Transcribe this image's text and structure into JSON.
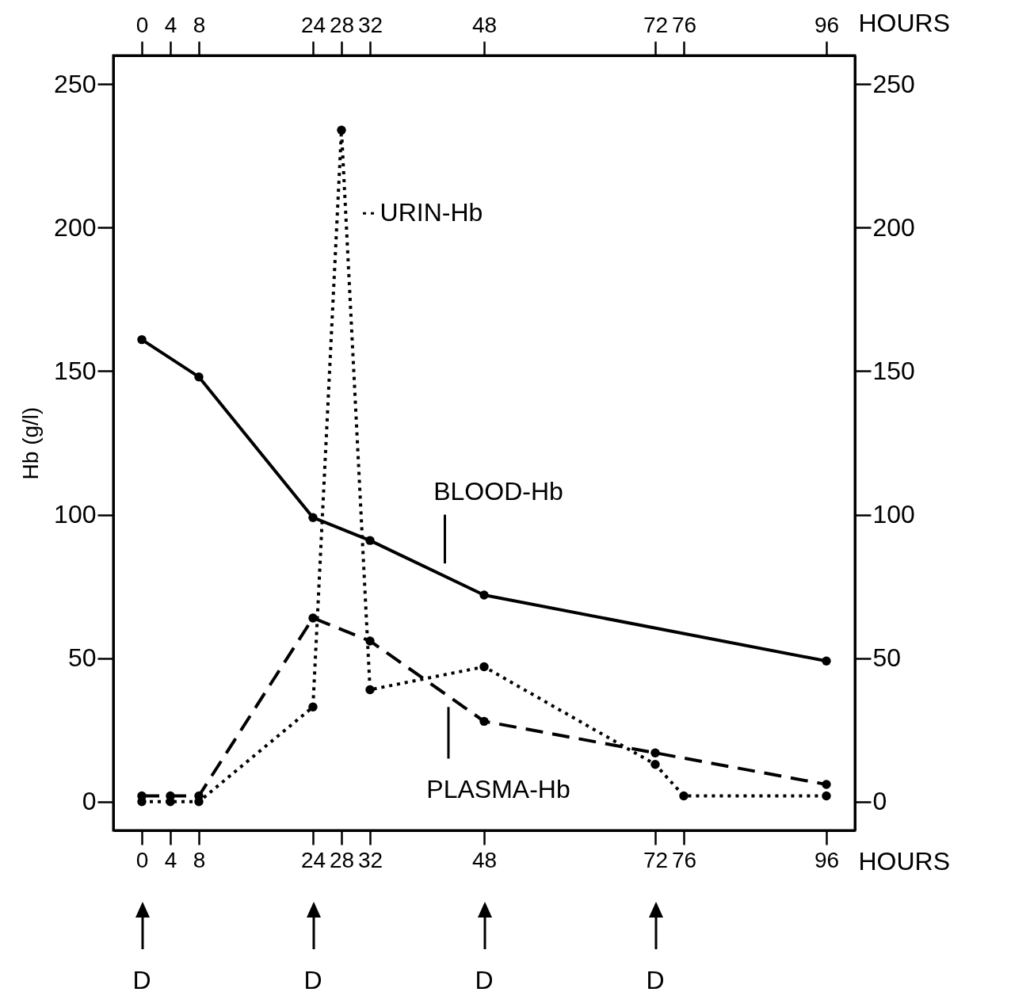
{
  "chart_data": {
    "type": "line",
    "xlabel": "HOURS",
    "x2label": "HOURS",
    "ylabel": "Hb (g/l)",
    "x": [
      0,
      4,
      8,
      24,
      28,
      32,
      48,
      72,
      76,
      96
    ],
    "series": [
      {
        "name": "BLOOD-Hb",
        "color": "#000000",
        "line_style": "solid",
        "values": [
          161,
          null,
          148,
          99,
          null,
          91,
          72,
          null,
          null,
          49
        ]
      },
      {
        "name": "PLASMA-Hb",
        "color": "#000000",
        "line_style": "dashed",
        "values": [
          2,
          2,
          2,
          64,
          null,
          56,
          28,
          17,
          null,
          6
        ]
      },
      {
        "name": "URIN-Hb",
        "color": "#000000",
        "line_style": "dotted",
        "values": [
          0,
          0,
          0,
          33,
          234,
          39,
          47,
          13,
          2,
          2
        ]
      }
    ],
    "xlim": [
      -4,
      100
    ],
    "xticks": [
      0,
      4,
      8,
      24,
      28,
      32,
      48,
      72,
      76,
      96
    ],
    "x2lim": [
      -4,
      100
    ],
    "x2ticks": [
      0,
      4,
      8,
      24,
      28,
      32,
      48,
      72,
      76,
      96
    ],
    "ylim": [
      -10,
      260
    ],
    "yticks": [
      0,
      50,
      100,
      150,
      200,
      250
    ],
    "y2lim": [
      -10,
      260
    ],
    "y2ticks": [
      0,
      50,
      100,
      150,
      200,
      250
    ],
    "annotations": [
      "D",
      "D",
      "D",
      "D"
    ],
    "marker": "circle",
    "grid": false
  }
}
